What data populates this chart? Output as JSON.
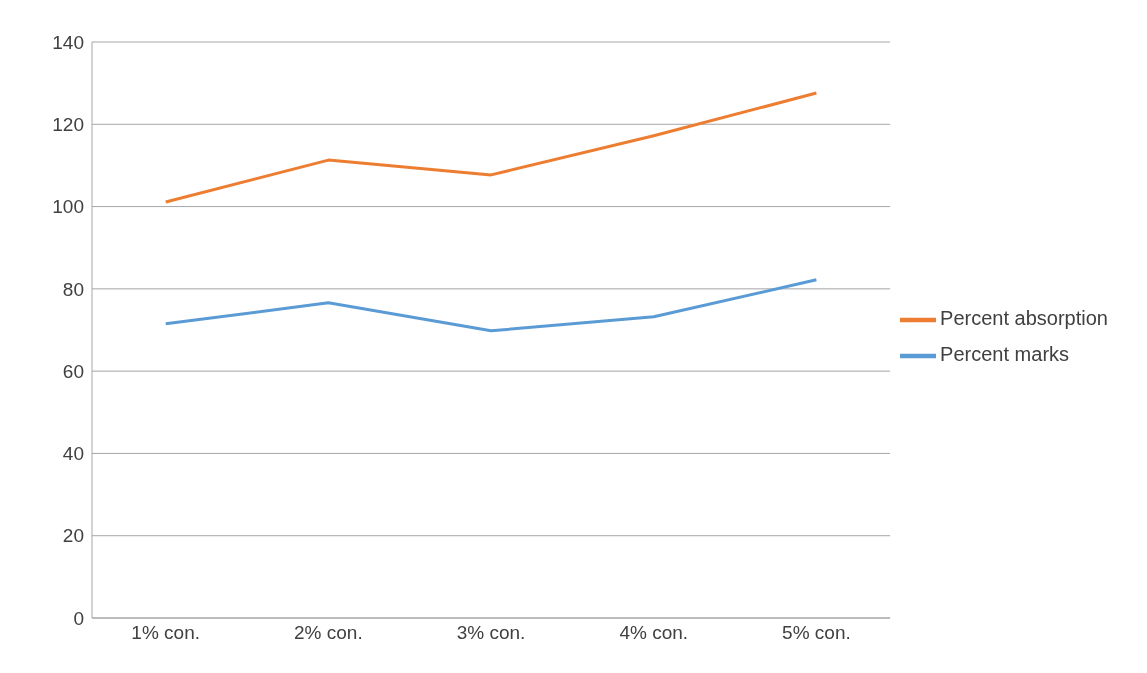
{
  "chart_data": {
    "type": "line",
    "categories": [
      "1% con.",
      "2% con.",
      "3% con.",
      "4% con.",
      "5% con."
    ],
    "series": [
      {
        "name": "Percent absorption",
        "color": "#ed7d31",
        "values": [
          101.1,
          111.3,
          107.7,
          117.2,
          127.6
        ]
      },
      {
        "name": "Percent marks",
        "color": "#5b9bd5",
        "values": [
          71.5,
          76.6,
          69.8,
          73.2,
          82.2
        ]
      }
    ],
    "ylim": [
      0,
      140
    ],
    "yticks": [
      0,
      20,
      40,
      60,
      80,
      100,
      120,
      140
    ],
    "grid": "y",
    "legend": "right",
    "marker": "none"
  }
}
